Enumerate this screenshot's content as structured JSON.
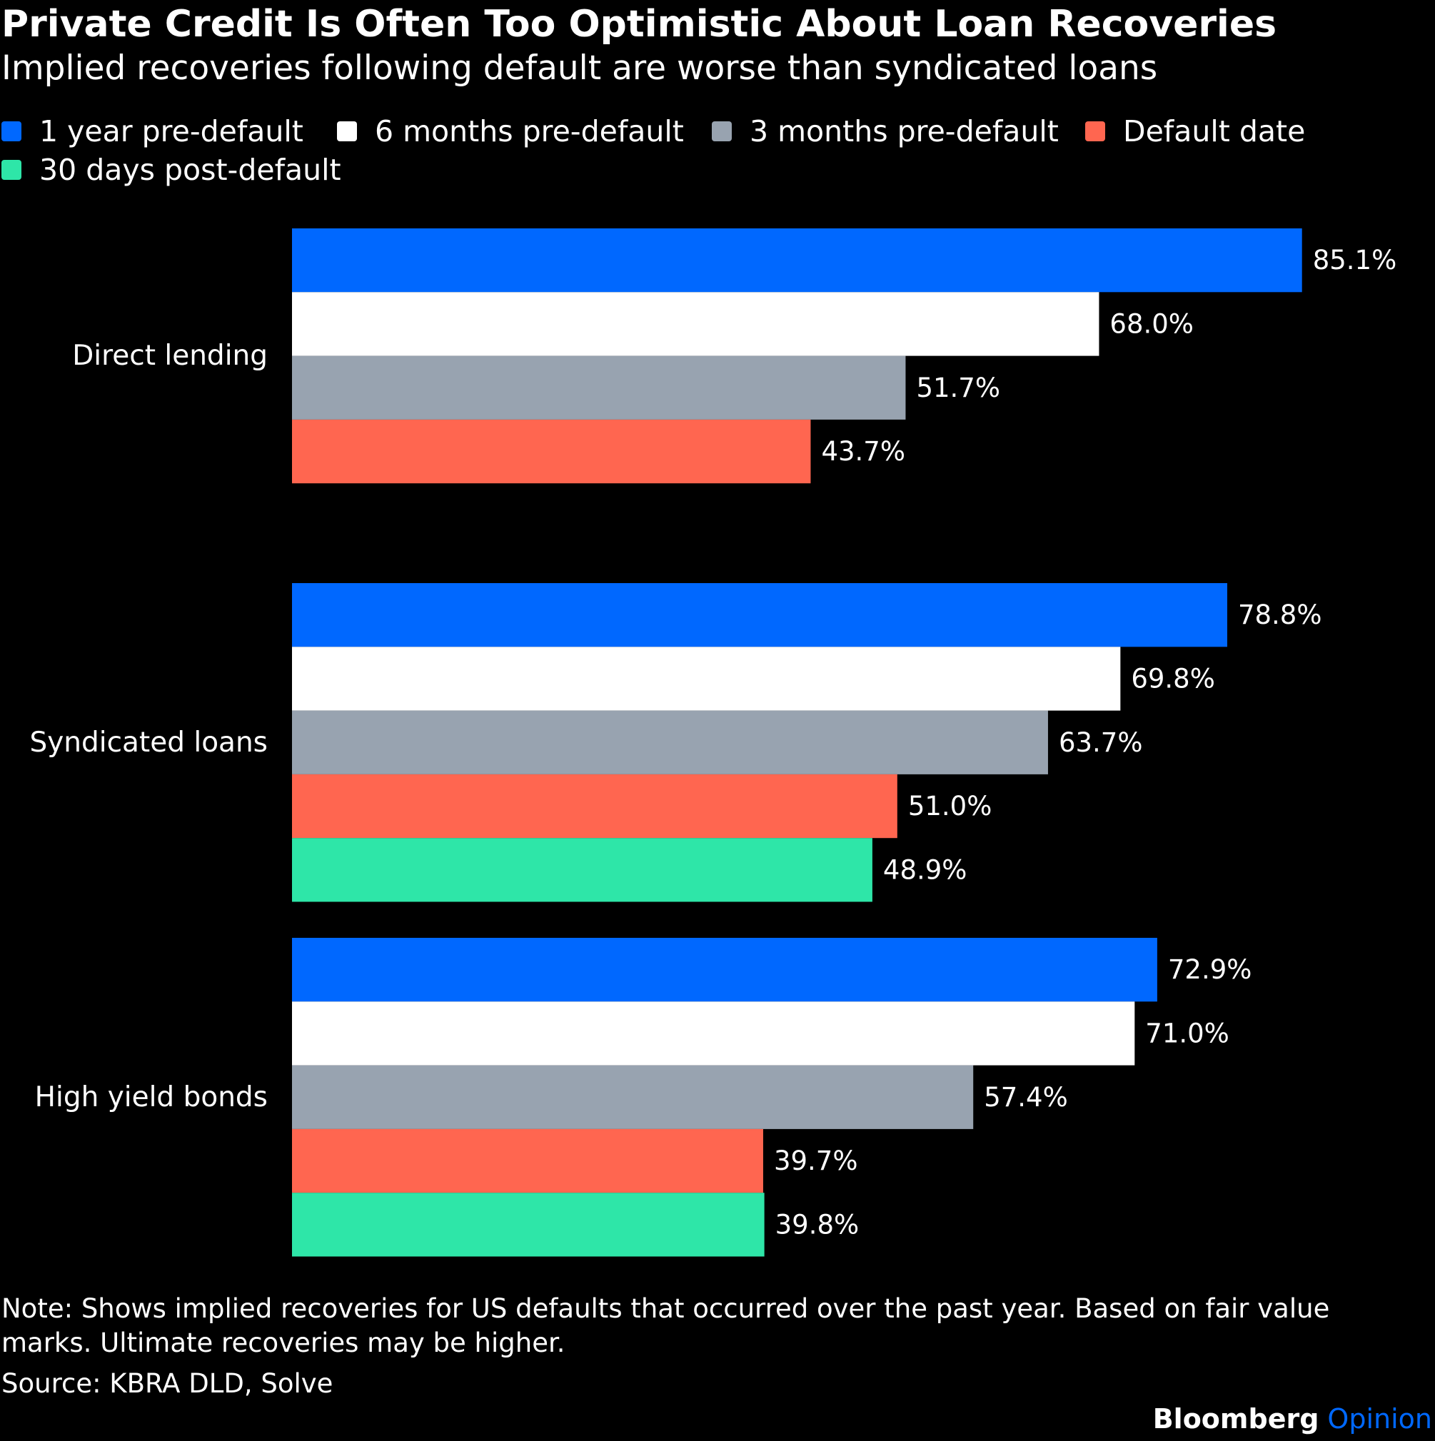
{
  "chart_data": {
    "type": "bar",
    "orientation": "horizontal",
    "title": "Private Credit Is Often Too Optimistic About Loan Recoveries",
    "subtitle": "Implied recoveries following default are worse than syndicated loans",
    "categories": [
      "Direct lending",
      "Syndicated loans",
      "High yield bonds"
    ],
    "series": [
      {
        "name": "1 year pre-default",
        "color": "#0068ff",
        "values": [
          85.1,
          78.8,
          72.9
        ],
        "labels": [
          "85.1%",
          "78.8%",
          "72.9%"
        ]
      },
      {
        "name": "6 months pre-default",
        "color": "#ffffff",
        "values": [
          68.0,
          69.8,
          71.0
        ],
        "labels": [
          "68.0%",
          "69.8%",
          "71.0%"
        ]
      },
      {
        "name": "3 months pre-default",
        "color": "#98a3b0",
        "values": [
          51.7,
          63.7,
          57.4
        ],
        "labels": [
          "51.7%",
          "63.7%",
          "57.4%"
        ]
      },
      {
        "name": "Default date",
        "color": "#ff6650",
        "values": [
          43.7,
          51.0,
          39.7
        ],
        "labels": [
          "43.7%",
          "51.0%",
          "39.7%"
        ]
      },
      {
        "name": "30 days post-default",
        "color": "#2ee6a8",
        "values": [
          null,
          48.9,
          39.8
        ],
        "labels": [
          null,
          "48.9%",
          "39.8%"
        ]
      }
    ],
    "xlim": [
      0,
      100
    ],
    "grid": false,
    "legend_position": "top-left"
  },
  "note": "Note: Shows implied recoveries for US defaults that occurred over the past year. Based on fair value marks. Ultimate recoveries may be higher.",
  "source": "Source: KBRA DLD, Solve",
  "brand": {
    "name": "Bloomberg",
    "tag": "Opinion",
    "tag_color": "#0068ff"
  }
}
